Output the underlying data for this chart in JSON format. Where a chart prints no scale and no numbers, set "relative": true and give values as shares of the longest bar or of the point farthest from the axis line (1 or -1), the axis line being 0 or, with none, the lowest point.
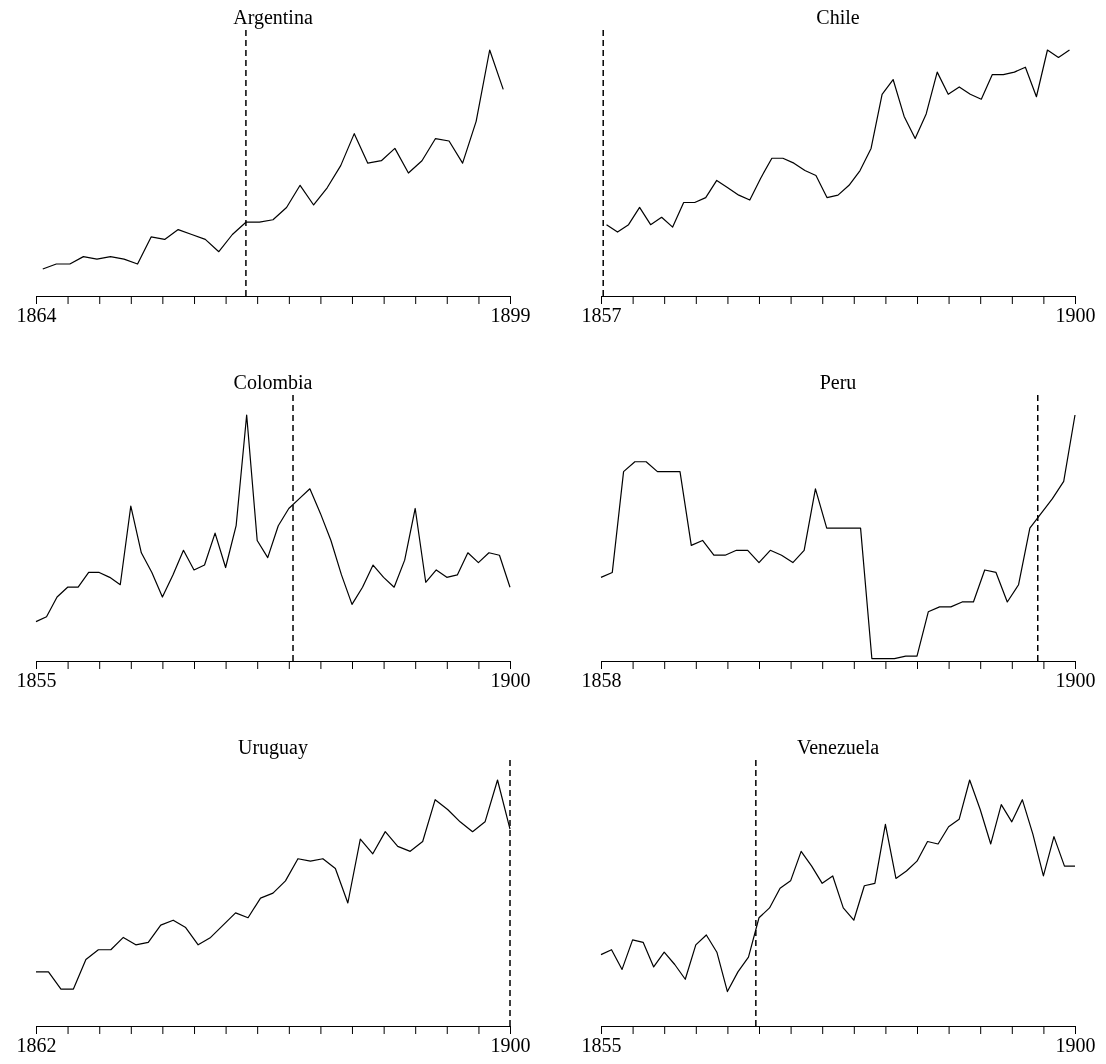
{
  "chart_data": [
    {
      "type": "line",
      "title": "Argentina",
      "relative": true,
      "xlim": [
        1864,
        1899
      ],
      "xticks": [
        1864,
        {
          "value": 1866.33,
          "label": null
        },
        {
          "value": 1868.67,
          "label": null
        },
        {
          "value": 1871,
          "label": null
        },
        {
          "value": 1873.33,
          "label": null
        },
        {
          "value": 1875.67,
          "label": null
        },
        {
          "value": 1878,
          "label": null
        },
        {
          "value": 1880.33,
          "label": null
        },
        {
          "value": 1882.67,
          "label": null
        },
        {
          "value": 1885,
          "label": null
        },
        {
          "value": 1887.33,
          "label": null
        },
        {
          "value": 1889.67,
          "label": null
        },
        {
          "value": 1892,
          "label": null
        },
        {
          "value": 1894.33,
          "label": null
        },
        {
          "value": 1896.67,
          "label": null
        },
        1899
      ],
      "x": [
        1864.5,
        1865.5,
        1866.5,
        1867.5,
        1868.5,
        1869.5,
        1870.5,
        1871.5,
        1872.5,
        1873.5,
        1874.5,
        1875.5,
        1876.5,
        1877.5,
        1878.5,
        1879.5,
        1880.5,
        1881.5,
        1882.5,
        1883.5,
        1884.5,
        1885.5,
        1886.5,
        1887.5,
        1888.5,
        1889.5,
        1890.5,
        1891.5,
        1892.5,
        1893.5,
        1894.5,
        1895.5,
        1896.5,
        1897.5,
        1898.5
      ],
      "series": [
        {
          "color": "#000000",
          "values": [
            0.11,
            0.13,
            0.13,
            0.16,
            0.15,
            0.16,
            0.15,
            0.13,
            0.24,
            0.23,
            0.27,
            0.25,
            0.23,
            0.18,
            0.25,
            0.3,
            0.3,
            0.31,
            0.36,
            0.45,
            0.37,
            0.44,
            0.53,
            0.66,
            0.54,
            0.55,
            0.6,
            0.5,
            0.55,
            0.64,
            0.63,
            0.54,
            0.71,
            1.0,
            0.84
          ]
        }
      ],
      "ref_lines": [
        {
          "axis": "x",
          "value": 1879.5,
          "line_style": "dashed",
          "color": "#000000"
        }
      ]
    },
    {
      "type": "line",
      "title": "Chile",
      "relative": true,
      "xlim": [
        1857,
        1900
      ],
      "xticks": [
        1857,
        {
          "value": 1859.87,
          "label": null
        },
        {
          "value": 1862.73,
          "label": null
        },
        {
          "value": 1865.6,
          "label": null
        },
        {
          "value": 1868.47,
          "label": null
        },
        {
          "value": 1871.33,
          "label": null
        },
        {
          "value": 1874.2,
          "label": null
        },
        {
          "value": 1877.07,
          "label": null
        },
        {
          "value": 1879.93,
          "label": null
        },
        {
          "value": 1882.8,
          "label": null
        },
        {
          "value": 1885.67,
          "label": null
        },
        {
          "value": 1888.53,
          "label": null
        },
        {
          "value": 1891.4,
          "label": null
        },
        {
          "value": 1894.27,
          "label": null
        },
        {
          "value": 1897.13,
          "label": null
        },
        1900
      ],
      "x": [
        1857.5,
        1858.5,
        1859.5,
        1860.5,
        1861.5,
        1862.5,
        1863.5,
        1864.5,
        1865.5,
        1866.5,
        1867.5,
        1868.5,
        1869.5,
        1870.5,
        1871.5,
        1872.5,
        1873.5,
        1874.5,
        1875.5,
        1876.5,
        1877.5,
        1878.5,
        1879.5,
        1880.5,
        1881.5,
        1882.5,
        1883.5,
        1884.5,
        1885.5,
        1886.5,
        1887.5,
        1888.5,
        1889.5,
        1890.5,
        1891.5,
        1892.5,
        1893.5,
        1894.5,
        1895.5,
        1896.5,
        1897.5,
        1898.5,
        1899.5
      ],
      "series": [
        {
          "color": "#000000",
          "values": [
            0.29,
            0.26,
            0.29,
            0.36,
            0.29,
            0.32,
            0.28,
            0.38,
            0.38,
            0.4,
            0.47,
            0.44,
            0.41,
            0.39,
            0.48,
            0.56,
            0.56,
            0.54,
            0.51,
            0.49,
            0.4,
            0.41,
            0.45,
            0.51,
            0.6,
            0.82,
            0.88,
            0.73,
            0.64,
            0.74,
            0.91,
            0.82,
            0.85,
            0.82,
            0.8,
            0.9,
            0.9,
            0.91,
            0.93,
            0.81,
            1.0,
            0.97,
            1.0
          ]
        }
      ],
      "ref_lines": [
        {
          "axis": "x",
          "value": 1857.2,
          "line_style": "dashed",
          "color": "#000000"
        }
      ]
    },
    {
      "type": "line",
      "title": "Colombia",
      "relative": true,
      "xlim": [
        1855,
        1900
      ],
      "xticks": [
        1855,
        {
          "value": 1858,
          "label": null
        },
        {
          "value": 1861,
          "label": null
        },
        {
          "value": 1864,
          "label": null
        },
        {
          "value": 1867,
          "label": null
        },
        {
          "value": 1870,
          "label": null
        },
        {
          "value": 1873,
          "label": null
        },
        {
          "value": 1876,
          "label": null
        },
        {
          "value": 1879,
          "label": null
        },
        {
          "value": 1882,
          "label": null
        },
        {
          "value": 1885,
          "label": null
        },
        {
          "value": 1888,
          "label": null
        },
        {
          "value": 1891,
          "label": null
        },
        {
          "value": 1894,
          "label": null
        },
        {
          "value": 1897,
          "label": null
        },
        1900
      ],
      "x": [
        1855,
        1856,
        1857,
        1858,
        1859,
        1860,
        1861,
        1862,
        1863,
        1864,
        1865,
        1866,
        1867,
        1868,
        1869,
        1870,
        1871,
        1872,
        1873,
        1874,
        1875,
        1876,
        1877,
        1878,
        1879,
        1880,
        1881,
        1882,
        1883,
        1884,
        1885,
        1886,
        1887,
        1888,
        1889,
        1890,
        1891,
        1892,
        1893,
        1894,
        1895,
        1896,
        1897,
        1898,
        1899,
        1900
      ],
      "series": [
        {
          "color": "#000000",
          "values": [
            0.16,
            0.18,
            0.26,
            0.3,
            0.3,
            0.36,
            0.36,
            0.34,
            0.31,
            0.63,
            0.44,
            0.36,
            0.26,
            0.35,
            0.45,
            0.37,
            0.39,
            0.52,
            0.38,
            0.55,
            1.0,
            0.49,
            0.42,
            0.55,
            0.62,
            0.66,
            0.7,
            0.6,
            0.49,
            0.35,
            0.23,
            0.3,
            0.39,
            0.34,
            0.3,
            0.41,
            0.62,
            0.32,
            0.37,
            0.34,
            0.35,
            0.44,
            0.4,
            0.44,
            0.43,
            0.3
          ]
        }
      ],
      "ref_lines": [
        {
          "axis": "x",
          "value": 1879.4,
          "line_style": "dashed",
          "color": "#000000"
        }
      ]
    },
    {
      "type": "line",
      "title": "Peru",
      "relative": true,
      "xlim": [
        1858,
        1900
      ],
      "xticks": [
        1858,
        {
          "value": 1860.8,
          "label": null
        },
        {
          "value": 1863.6,
          "label": null
        },
        {
          "value": 1866.4,
          "label": null
        },
        {
          "value": 1869.2,
          "label": null
        },
        {
          "value": 1872,
          "label": null
        },
        {
          "value": 1874.8,
          "label": null
        },
        {
          "value": 1877.6,
          "label": null
        },
        {
          "value": 1880.4,
          "label": null
        },
        {
          "value": 1883.2,
          "label": null
        },
        {
          "value": 1886,
          "label": null
        },
        {
          "value": 1888.8,
          "label": null
        },
        {
          "value": 1891.6,
          "label": null
        },
        {
          "value": 1894.4,
          "label": null
        },
        {
          "value": 1897.2,
          "label": null
        },
        1900
      ],
      "x": [
        1858,
        1859,
        1860,
        1861,
        1862,
        1863,
        1864,
        1865,
        1866,
        1867,
        1868,
        1869,
        1870,
        1871,
        1872,
        1873,
        1874,
        1875,
        1876,
        1877,
        1878,
        1879,
        1880,
        1881,
        1882,
        1883,
        1884,
        1885,
        1886,
        1887,
        1888,
        1889,
        1890,
        1891,
        1892,
        1893,
        1894,
        1895,
        1896,
        1897,
        1898,
        1899,
        1900
      ],
      "series": [
        {
          "color": "#000000",
          "values": [
            0.34,
            0.36,
            0.77,
            0.81,
            0.81,
            0.77,
            0.77,
            0.77,
            0.47,
            0.49,
            0.43,
            0.43,
            0.45,
            0.45,
            0.4,
            0.45,
            0.43,
            0.4,
            0.45,
            0.7,
            0.54,
            0.54,
            0.54,
            0.54,
            0.01,
            0.01,
            0.01,
            0.02,
            0.02,
            0.2,
            0.22,
            0.22,
            0.24,
            0.24,
            0.37,
            0.36,
            0.24,
            0.31,
            0.54,
            0.6,
            0.66,
            0.73,
            1.0
          ]
        }
      ],
      "ref_lines": [
        {
          "axis": "x",
          "value": 1896.7,
          "line_style": "dashed",
          "color": "#000000"
        }
      ]
    },
    {
      "type": "line",
      "title": "Uruguay",
      "relative": true,
      "xlim": [
        1862,
        1900
      ],
      "xticks": [
        1862,
        {
          "value": 1864.53,
          "label": null
        },
        {
          "value": 1867.07,
          "label": null
        },
        {
          "value": 1869.6,
          "label": null
        },
        {
          "value": 1872.13,
          "label": null
        },
        {
          "value": 1874.67,
          "label": null
        },
        {
          "value": 1877.2,
          "label": null
        },
        {
          "value": 1879.73,
          "label": null
        },
        {
          "value": 1882.27,
          "label": null
        },
        {
          "value": 1884.8,
          "label": null
        },
        {
          "value": 1887.33,
          "label": null
        },
        {
          "value": 1889.87,
          "label": null
        },
        {
          "value": 1892.4,
          "label": null
        },
        {
          "value": 1894.93,
          "label": null
        },
        {
          "value": 1897.47,
          "label": null
        },
        1900
      ],
      "x": [
        1862,
        1863,
        1864,
        1865,
        1866,
        1867,
        1868,
        1869,
        1870,
        1871,
        1872,
        1873,
        1874,
        1875,
        1876,
        1877,
        1878,
        1879,
        1880,
        1881,
        1882,
        1883,
        1884,
        1885,
        1886,
        1887,
        1888,
        1889,
        1890,
        1891,
        1892,
        1893,
        1894,
        1895,
        1896,
        1897,
        1898,
        1899,
        1900
      ],
      "series": [
        {
          "color": "#000000",
          "values": [
            0.22,
            0.22,
            0.15,
            0.15,
            0.27,
            0.31,
            0.31,
            0.36,
            0.33,
            0.34,
            0.41,
            0.43,
            0.4,
            0.33,
            0.36,
            0.41,
            0.46,
            0.44,
            0.52,
            0.54,
            0.59,
            0.68,
            0.67,
            0.68,
            0.64,
            0.5,
            0.76,
            0.7,
            0.79,
            0.73,
            0.71,
            0.75,
            0.92,
            0.88,
            0.83,
            0.79,
            0.83,
            1.0,
            0.8
          ]
        }
      ],
      "ref_lines": [
        {
          "axis": "x",
          "value": 1900,
          "line_style": "dashed",
          "color": "#000000"
        }
      ]
    },
    {
      "type": "line",
      "title": "Venezuela",
      "relative": true,
      "xlim": [
        1855,
        1900
      ],
      "xticks": [
        1855,
        {
          "value": 1858,
          "label": null
        },
        {
          "value": 1861,
          "label": null
        },
        {
          "value": 1864,
          "label": null
        },
        {
          "value": 1867,
          "label": null
        },
        {
          "value": 1870,
          "label": null
        },
        {
          "value": 1873,
          "label": null
        },
        {
          "value": 1876,
          "label": null
        },
        {
          "value": 1879,
          "label": null
        },
        {
          "value": 1882,
          "label": null
        },
        {
          "value": 1885,
          "label": null
        },
        {
          "value": 1888,
          "label": null
        },
        {
          "value": 1891,
          "label": null
        },
        {
          "value": 1894,
          "label": null
        },
        {
          "value": 1897,
          "label": null
        },
        1900
      ],
      "x": [
        1855,
        1856,
        1857,
        1858,
        1859,
        1860,
        1861,
        1862,
        1863,
        1864,
        1865,
        1866,
        1867,
        1868,
        1869,
        1870,
        1871,
        1872,
        1873,
        1874,
        1875,
        1876,
        1877,
        1878,
        1879,
        1880,
        1881,
        1882,
        1883,
        1884,
        1885,
        1886,
        1887,
        1888,
        1889,
        1890,
        1891,
        1892,
        1893,
        1894,
        1895,
        1896,
        1897,
        1898,
        1899,
        1900
      ],
      "series": [
        {
          "color": "#000000",
          "values": [
            0.29,
            0.31,
            0.23,
            0.35,
            0.34,
            0.24,
            0.3,
            0.25,
            0.19,
            0.33,
            0.37,
            0.3,
            0.14,
            0.22,
            0.28,
            0.44,
            0.48,
            0.56,
            0.59,
            0.71,
            0.65,
            0.58,
            0.61,
            0.48,
            0.43,
            0.57,
            0.58,
            0.82,
            0.6,
            0.63,
            0.67,
            0.75,
            0.74,
            0.81,
            0.84,
            1.0,
            0.88,
            0.74,
            0.9,
            0.83,
            0.92,
            0.78,
            0.61,
            0.77,
            0.65,
            0.65
          ]
        }
      ],
      "ref_lines": [
        {
          "axis": "x",
          "value": 1869.7,
          "line_style": "dashed",
          "color": "#000000"
        }
      ]
    }
  ]
}
